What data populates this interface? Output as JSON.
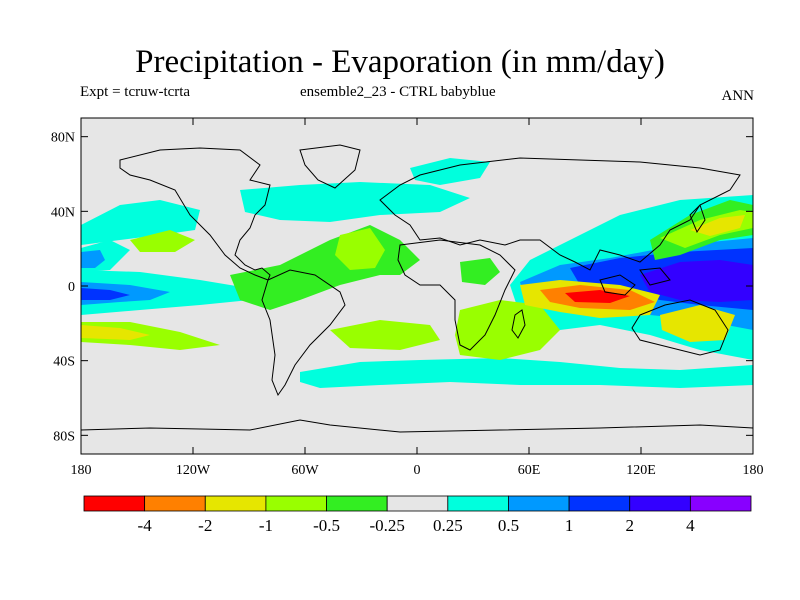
{
  "title": "Precipitation - Evaporation (in mm/day)",
  "subtitle_left": "Expt = tcruw-tcrta",
  "subtitle_center": "ensemble2_23 - CTRL babyblue",
  "subtitle_right": "ANN",
  "chart_data": {
    "type": "contour-map",
    "variable": "Precipitation minus Evaporation",
    "units": "mm/day",
    "period": "ANN",
    "lon_range": [
      -180,
      180
    ],
    "lat_range": [
      -90,
      90
    ],
    "lon_ticks": [
      {
        "value": -180,
        "label": "180"
      },
      {
        "value": -120,
        "label": "120W"
      },
      {
        "value": -60,
        "label": "60W"
      },
      {
        "value": 0,
        "label": "0"
      },
      {
        "value": 60,
        "label": "60E"
      },
      {
        "value": 120,
        "label": "120E"
      },
      {
        "value": 180,
        "label": "180"
      }
    ],
    "lat_ticks": [
      {
        "value": 80,
        "label": "80N"
      },
      {
        "value": 40,
        "label": "40N"
      },
      {
        "value": 0,
        "label": "0"
      },
      {
        "value": -40,
        "label": "40S"
      },
      {
        "value": -80,
        "label": "80S"
      }
    ],
    "levels": [
      "-4",
      "-2",
      "-1",
      "-0.5",
      "-0.25",
      "0.25",
      "0.5",
      "1",
      "2",
      "4"
    ],
    "colors": [
      "#ff0000",
      "#ff8000",
      "#e6e600",
      "#99ff00",
      "#33ee22",
      "#e6e6e6",
      "#00ffdd",
      "#0099ff",
      "#0033ff",
      "#3300ff",
      "#8800ff"
    ]
  }
}
